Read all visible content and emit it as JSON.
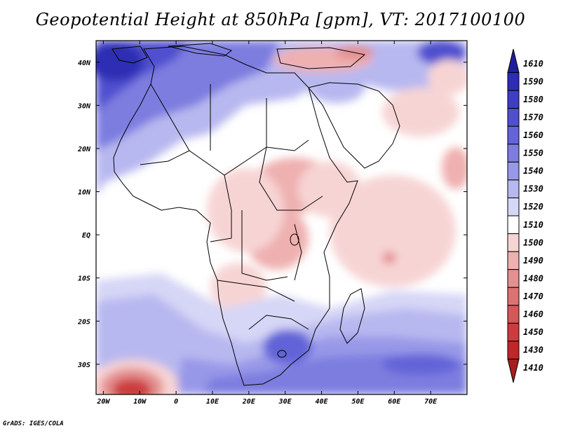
{
  "title": "Geopotential Height at 850hPa [gpm], VT: 2017100100",
  "footer": "GrADS: IGES/COLA",
  "map": {
    "lon_range": [
      -22,
      80
    ],
    "lat_range": [
      -37,
      45
    ],
    "x_ticks": [
      "20W",
      "10W",
      "0",
      "10E",
      "20E",
      "30E",
      "40E",
      "50E",
      "60E",
      "70E"
    ],
    "y_ticks": [
      "40N",
      "30N",
      "20N",
      "10N",
      "EQ",
      "10S",
      "20S",
      "30S"
    ]
  },
  "colorbar": {
    "levels": [
      "1610",
      "1590",
      "1580",
      "1570",
      "1560",
      "1550",
      "1540",
      "1530",
      "1520",
      "1510",
      "1500",
      "1490",
      "1480",
      "1470",
      "1460",
      "1450",
      "1430",
      "1410"
    ],
    "colors": [
      "#1f1f9c",
      "#2d2db4",
      "#3e3ec4",
      "#5050cf",
      "#6464d8",
      "#7d7de0",
      "#9898e8",
      "#b8b8f0",
      "#d6d6f6",
      "#ffffff",
      "#f7d4d4",
      "#efb0b0",
      "#e49090",
      "#db7373",
      "#d45858",
      "#cc3c3c",
      "#bf2828",
      "#a81d1d"
    ]
  },
  "chart_data": {
    "type": "heatmap",
    "title": "Geopotential Height at 850hPa [gpm], VT: 2017100100",
    "variable": "Geopotential Height",
    "level": "850hPa",
    "units": "gpm",
    "valid_time": "2017100100",
    "x_ticks": [
      "20W",
      "10W",
      "0",
      "10E",
      "20E",
      "30E",
      "40E",
      "50E",
      "60E",
      "70E"
    ],
    "y_ticks": [
      "40N",
      "30N",
      "20N",
      "10N",
      "EQ",
      "10S",
      "20S",
      "30S"
    ],
    "colorbar_levels": [
      1610,
      1590,
      1580,
      1570,
      1560,
      1550,
      1540,
      1530,
      1520,
      1510,
      1500,
      1490,
      1480,
      1470,
      1460,
      1450,
      1430,
      1410
    ]
  }
}
